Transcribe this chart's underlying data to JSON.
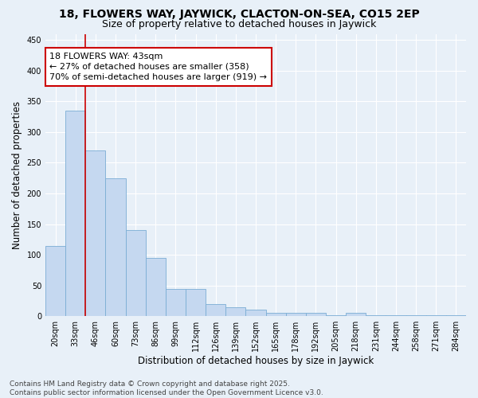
{
  "title": "18, FLOWERS WAY, JAYWICK, CLACTON-ON-SEA, CO15 2EP",
  "subtitle": "Size of property relative to detached houses in Jaywick",
  "xlabel": "Distribution of detached houses by size in Jaywick",
  "ylabel": "Number of detached properties",
  "categories": [
    "20sqm",
    "33sqm",
    "46sqm",
    "60sqm",
    "73sqm",
    "86sqm",
    "99sqm",
    "112sqm",
    "126sqm",
    "139sqm",
    "152sqm",
    "165sqm",
    "178sqm",
    "192sqm",
    "205sqm",
    "218sqm",
    "231sqm",
    "244sqm",
    "258sqm",
    "271sqm",
    "284sqm"
  ],
  "values": [
    115,
    335,
    270,
    225,
    140,
    95,
    45,
    45,
    20,
    15,
    10,
    5,
    5,
    5,
    2,
    5,
    2,
    1,
    1,
    1,
    2
  ],
  "bar_color": "#c5d8f0",
  "bar_edge_color": "#7aadd4",
  "background_color": "#e8f0f8",
  "grid_color": "#ffffff",
  "vline_x": 1.5,
  "vline_color": "#cc0000",
  "annotation_text": "18 FLOWERS WAY: 43sqm\n← 27% of detached houses are smaller (358)\n70% of semi-detached houses are larger (919) →",
  "annotation_box_color": "white",
  "annotation_box_edge": "#cc0000",
  "ylim": [
    0,
    460
  ],
  "yticks": [
    0,
    50,
    100,
    150,
    200,
    250,
    300,
    350,
    400,
    450
  ],
  "footer": "Contains HM Land Registry data © Crown copyright and database right 2025.\nContains public sector information licensed under the Open Government Licence v3.0.",
  "title_fontsize": 10,
  "subtitle_fontsize": 9,
  "xlabel_fontsize": 8.5,
  "ylabel_fontsize": 8.5,
  "tick_fontsize": 7,
  "annotation_fontsize": 8,
  "footer_fontsize": 6.5
}
